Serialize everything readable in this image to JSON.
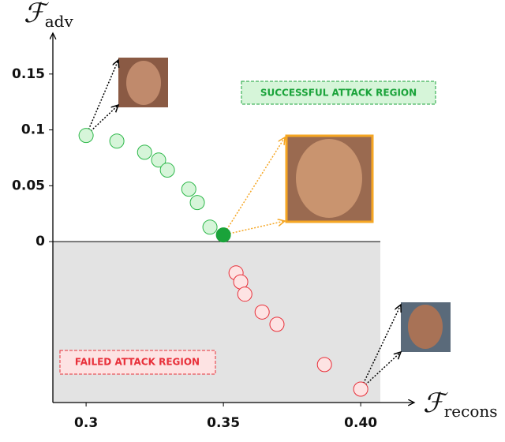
{
  "chart_data": {
    "type": "scatter",
    "x_label": {
      "symbol": "ℱ",
      "subscript": "recons"
    },
    "y_label": {
      "symbol": "ℱ",
      "subscript": "adv"
    },
    "xlim": [
      0.2879,
      0.4195
    ],
    "ylim": [
      -0.144,
      0.188
    ],
    "xticks": [
      0.3,
      0.35,
      {
        "value": 0.4,
        "label": "0.40"
      }
    ],
    "yticks": [
      0,
      0.05,
      0.1,
      0.15
    ],
    "series": [
      {
        "color": "#2db84a",
        "fill": "#d6f5d9",
        "x": [
          0.3,
          0.3112,
          0.3213,
          0.3264,
          0.3296,
          0.3374,
          0.3405,
          0.3451
        ],
        "values": [
          0.095,
          0.09,
          0.08,
          0.073,
          0.064,
          0.047,
          0.035,
          0.013
        ]
      },
      {
        "color": "#1aa33a",
        "fill": "#1aa33a",
        "x": [
          0.35
        ],
        "values": [
          0.006
        ]
      },
      {
        "color": "#e8303a",
        "fill": "#fde3e3",
        "x": [
          0.3546,
          0.3563,
          0.3578,
          0.3641,
          0.3695,
          0.3868,
          0.4
        ],
        "values": [
          -0.028,
          -0.036,
          -0.047,
          -0.063,
          -0.074,
          -0.11,
          -0.132
        ]
      }
    ],
    "annotations": [
      {
        "text": "SUCCESSFUL ATTACK REGION",
        "color": "#1aa33a"
      },
      {
        "text": "FAILED ATTACK REGION",
        "color": "#e8303a"
      }
    ]
  }
}
